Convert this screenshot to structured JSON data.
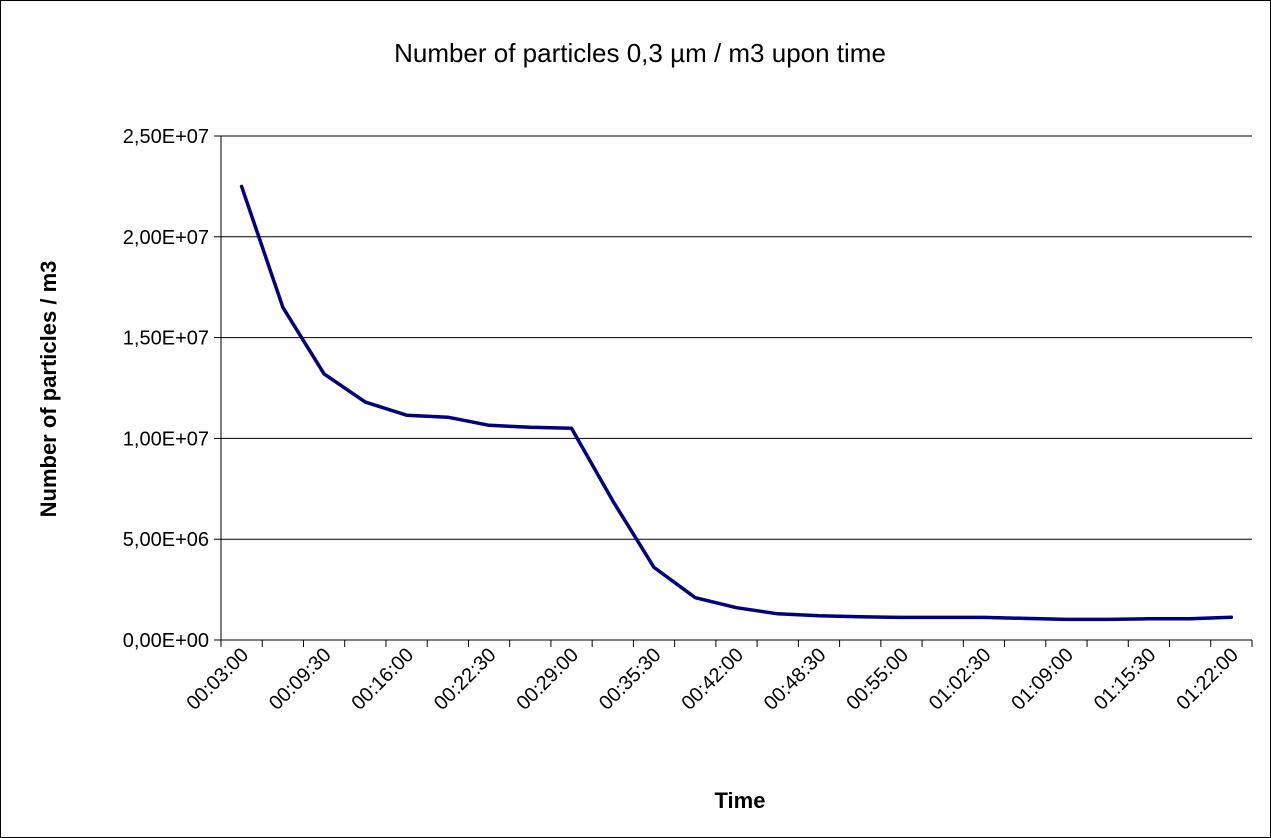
{
  "chart_data": {
    "type": "line",
    "title": "Number of particles 0,3 µm / m3 upon time",
    "xlabel": "Time",
    "ylabel": "Number of particles / m3",
    "ylim": [
      0,
      25000000
    ],
    "yticks": [
      0,
      5000000,
      10000000,
      15000000,
      20000000,
      25000000
    ],
    "ytick_labels": [
      "0,00E+00",
      "5,00E+06",
      "1,00E+07",
      "1,50E+07",
      "2,00E+07",
      "2,50E+07"
    ],
    "xtick_labels": [
      "00:03:00",
      "00:09:30",
      "00:16:00",
      "00:22:30",
      "00:29:00",
      "00:35:30",
      "00:42:00",
      "00:48:30",
      "00:55:00",
      "01:02:30",
      "01:09:00",
      "01:15:30",
      "01:22:00"
    ],
    "grid": "horizontal",
    "series": [
      {
        "color": "#000080",
        "x": [
          "00:03:00",
          "00:06:15",
          "00:09:30",
          "00:12:45",
          "00:16:00",
          "00:19:15",
          "00:22:30",
          "00:25:45",
          "00:29:00",
          "00:32:15",
          "00:35:30",
          "00:38:45",
          "00:42:00",
          "00:45:15",
          "00:48:30",
          "00:51:45",
          "00:55:00",
          "00:58:15",
          "01:02:30",
          "01:05:45",
          "01:09:00",
          "01:12:15",
          "01:15:30",
          "01:18:45",
          "01:22:00"
        ],
        "values": [
          22500000,
          16500000,
          13200000,
          11800000,
          11150000,
          11050000,
          10650000,
          10550000,
          10500000,
          6900000,
          3600000,
          2100000,
          1600000,
          1300000,
          1200000,
          1150000,
          1120000,
          1120000,
          1120000,
          1070000,
          1020000,
          1020000,
          1050000,
          1050000,
          1130000
        ]
      }
    ]
  }
}
